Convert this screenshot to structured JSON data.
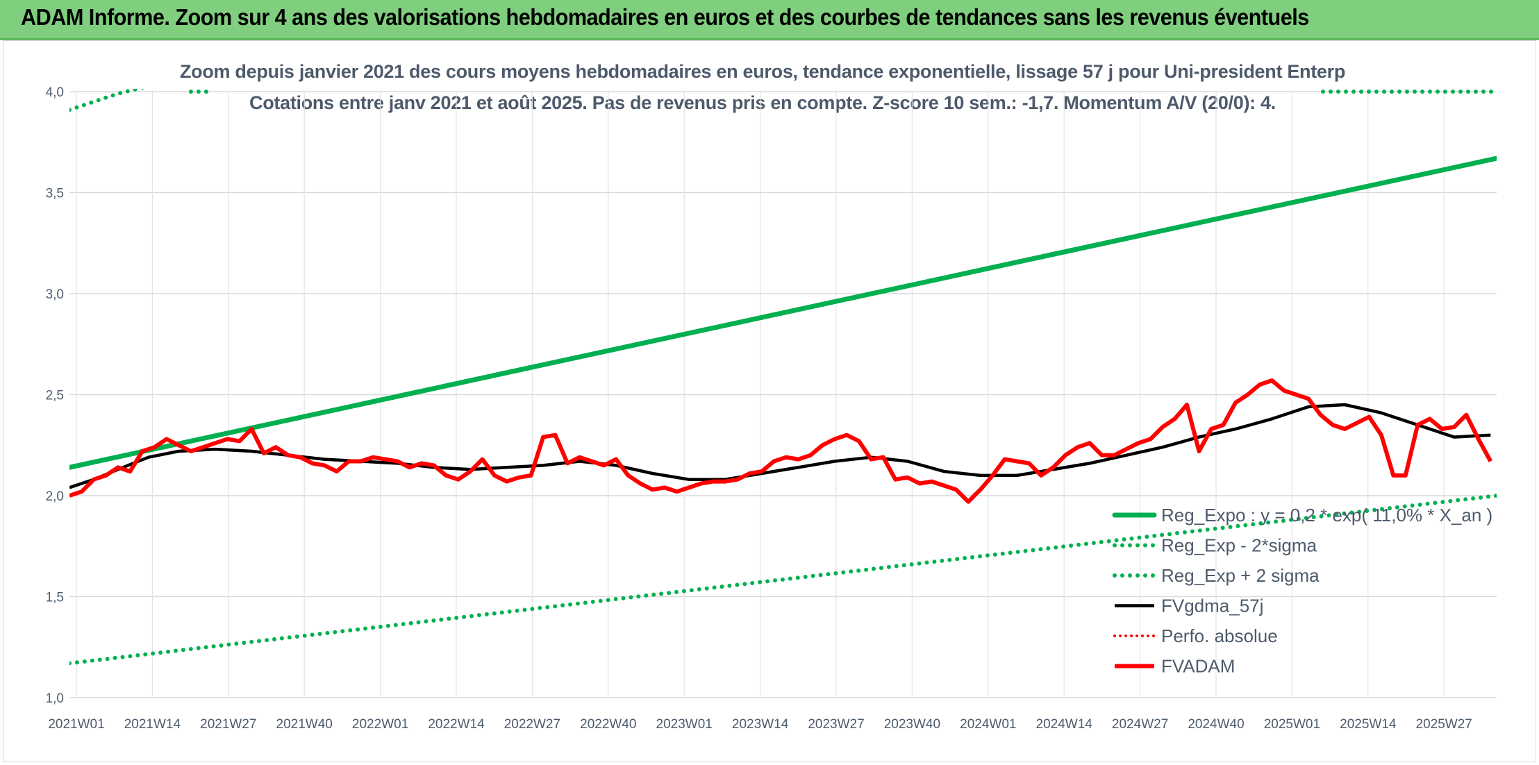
{
  "header": {
    "title": "ADAM Informe. Zoom sur 4 ans des valorisations hebdomadaires en euros et des courbes de tendances sans les revenus éventuels"
  },
  "chart_data": {
    "type": "line",
    "title": "Zoom depuis janvier 2021 des cours moyens hebdomadaires en euros, tendance exponentielle, lissage 57 j pour Uni-president Enterp",
    "subtitle": "Cotations entre janv 2021 et août 2025. Pas de revenus pris en compte. Z-score 10 sem.: -1,7. Momentum A/V (20/0): 4.",
    "x_tick_labels": [
      "2021W01",
      "2021W14",
      "2021W27",
      "2021W40",
      "2022W01",
      "2022W14",
      "2022W27",
      "2022W40",
      "2023W01",
      "2023W14",
      "2023W27",
      "2023W40",
      "2024W01",
      "2024W14",
      "2024W27",
      "2024W40",
      "2025W01",
      "2025W14",
      "2025W27"
    ],
    "y_tick_labels": [
      "1,0",
      "1,5",
      "2,0",
      "2,5",
      "3,0",
      "3,5",
      "4,0"
    ],
    "ylim": [
      1.0,
      4.0
    ],
    "grid": true,
    "legend_position": "bottom-right",
    "colors": {
      "green": "#00b050",
      "black": "#000000",
      "red": "#ff0000"
    },
    "series": [
      {
        "name": "Reg_Expo : y = 0,2 * exp( 11,0% * X_an )",
        "style": "solid-green",
        "x": [
          0,
          235
        ],
        "y": [
          2.14,
          3.67
        ]
      },
      {
        "name": "Reg_Exp - 2*sigma",
        "style": "dotted-green",
        "x": [
          0,
          235
        ],
        "y": [
          1.17,
          2.0
        ]
      },
      {
        "name": "Reg_Exp + 2 sigma",
        "style": "dotted-green",
        "x": [
          0,
          4,
          8,
          12,
          16,
          20
        ],
        "y": [
          3.91,
          3.95,
          3.99,
          4.02,
          4.06,
          4.1
        ]
      },
      {
        "name": "FVgdma_57j",
        "style": "solid-black",
        "x": [
          0,
          4,
          8,
          13,
          18,
          24,
          30,
          36,
          42,
          48,
          54,
          60,
          66,
          72,
          78,
          84,
          90,
          96,
          102,
          108,
          114,
          120,
          126,
          132,
          138,
          144,
          150,
          156,
          162,
          168,
          174,
          180,
          186,
          192,
          198,
          204,
          210,
          216,
          222,
          228,
          234
        ],
        "y": [
          2.04,
          2.08,
          2.13,
          2.19,
          2.22,
          2.23,
          2.22,
          2.2,
          2.18,
          2.17,
          2.16,
          2.14,
          2.13,
          2.14,
          2.15,
          2.17,
          2.15,
          2.11,
          2.08,
          2.08,
          2.11,
          2.14,
          2.17,
          2.19,
          2.17,
          2.12,
          2.1,
          2.1,
          2.13,
          2.16,
          2.2,
          2.24,
          2.29,
          2.33,
          2.38,
          2.44,
          2.45,
          2.41,
          2.35,
          2.29,
          2.3
        ]
      },
      {
        "name": "Perfo. absolue",
        "style": "dotted-red",
        "x": [],
        "y": []
      },
      {
        "name": "FVADAM",
        "style": "solid-red",
        "x": [
          0,
          2,
          4,
          6,
          8,
          10,
          12,
          14,
          16,
          18,
          20,
          22,
          24,
          26,
          28,
          30,
          32,
          34,
          36,
          38,
          40,
          42,
          44,
          46,
          48,
          50,
          52,
          54,
          56,
          58,
          60,
          62,
          64,
          66,
          68,
          70,
          72,
          74,
          76,
          78,
          80,
          82,
          84,
          86,
          88,
          90,
          92,
          94,
          96,
          98,
          100,
          102,
          104,
          106,
          108,
          110,
          112,
          114,
          116,
          118,
          120,
          122,
          124,
          126,
          128,
          130,
          132,
          134,
          136,
          138,
          140,
          142,
          144,
          146,
          148,
          150,
          152,
          154,
          156,
          158,
          160,
          162,
          164,
          166,
          168,
          170,
          172,
          174,
          176,
          178,
          180,
          182,
          184,
          186,
          188,
          190,
          192,
          194,
          196,
          198,
          200,
          202,
          204,
          206,
          208,
          210,
          212,
          214,
          216,
          218,
          220,
          222,
          224,
          226,
          228,
          230,
          232,
          234
        ],
        "y": [
          2.0,
          2.02,
          2.08,
          2.1,
          2.14,
          2.12,
          2.22,
          2.24,
          2.28,
          2.25,
          2.22,
          2.24,
          2.26,
          2.28,
          2.27,
          2.33,
          2.21,
          2.24,
          2.2,
          2.19,
          2.16,
          2.15,
          2.12,
          2.17,
          2.17,
          2.19,
          2.18,
          2.17,
          2.14,
          2.16,
          2.15,
          2.1,
          2.08,
          2.12,
          2.18,
          2.1,
          2.07,
          2.09,
          2.1,
          2.29,
          2.3,
          2.16,
          2.19,
          2.17,
          2.15,
          2.18,
          2.1,
          2.06,
          2.03,
          2.04,
          2.02,
          2.04,
          2.06,
          2.07,
          2.07,
          2.08,
          2.11,
          2.12,
          2.17,
          2.19,
          2.18,
          2.2,
          2.25,
          2.28,
          2.3,
          2.27,
          2.18,
          2.19,
          2.08,
          2.09,
          2.06,
          2.07,
          2.05,
          2.03,
          1.97,
          2.03,
          2.1,
          2.18,
          2.17,
          2.16,
          2.1,
          2.14,
          2.2,
          2.24,
          2.26,
          2.2,
          2.2,
          2.23,
          2.26,
          2.28,
          2.34,
          2.38,
          2.45,
          2.22,
          2.33,
          2.35,
          2.46,
          2.5,
          2.55,
          2.57,
          2.52,
          2.5,
          2.48,
          2.4,
          2.35,
          2.33,
          2.36,
          2.39,
          2.3,
          2.1,
          2.1,
          2.35,
          2.38,
          2.33,
          2.34,
          2.4,
          2.28,
          2.17
        ]
      }
    ]
  }
}
